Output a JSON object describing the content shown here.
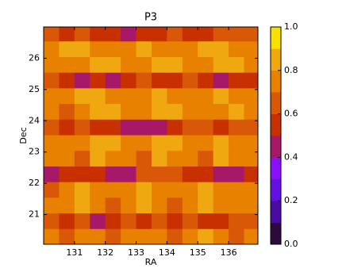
{
  "chart_data": {
    "type": "heatmap",
    "title": "P3",
    "x_label": "RA",
    "y_label": "Dec",
    "x": [
      130.25,
      130.75,
      131.25,
      131.75,
      132.25,
      132.75,
      133.25,
      133.75,
      134.25,
      134.75,
      135.25,
      135.75,
      136.25,
      136.75
    ],
    "y": [
      20.3,
      20.8,
      21.3,
      21.8,
      22.3,
      22.8,
      23.3,
      23.8,
      24.3,
      24.8,
      25.3,
      25.8,
      26.3,
      26.8
    ],
    "z": [
      [
        0.72,
        0.68,
        0.75,
        0.7,
        0.66,
        0.72,
        0.78,
        0.7,
        0.65,
        0.74,
        0.82,
        0.7,
        0.68,
        0.75
      ],
      [
        0.62,
        0.55,
        0.6,
        0.48,
        0.58,
        0.62,
        0.5,
        0.6,
        0.55,
        0.62,
        0.58,
        0.5,
        0.6,
        0.65
      ],
      [
        0.7,
        0.78,
        0.82,
        0.7,
        0.68,
        0.75,
        0.8,
        0.72,
        0.68,
        0.78,
        0.82,
        0.7,
        0.75,
        0.72
      ],
      [
        0.68,
        0.72,
        0.85,
        0.78,
        0.7,
        0.72,
        0.84,
        0.78,
        0.7,
        0.75,
        0.85,
        0.78,
        0.7,
        0.74
      ],
      [
        0.45,
        0.5,
        0.55,
        0.5,
        0.48,
        0.45,
        0.6,
        0.62,
        0.6,
        0.55,
        0.5,
        0.45,
        0.48,
        0.55
      ],
      [
        0.75,
        0.72,
        0.68,
        0.8,
        0.74,
        0.7,
        0.66,
        0.82,
        0.76,
        0.7,
        0.68,
        0.8,
        0.75,
        0.7
      ],
      [
        0.7,
        0.78,
        0.72,
        0.84,
        0.8,
        0.7,
        0.74,
        0.86,
        0.8,
        0.72,
        0.7,
        0.84,
        0.78,
        0.7
      ],
      [
        0.62,
        0.58,
        0.6,
        0.55,
        0.5,
        0.42,
        0.48,
        0.45,
        0.58,
        0.62,
        0.6,
        0.55,
        0.6,
        0.62
      ],
      [
        0.72,
        0.68,
        0.75,
        0.8,
        0.85,
        0.7,
        0.72,
        0.8,
        0.86,
        0.74,
        0.7,
        0.78,
        0.82,
        0.72
      ],
      [
        0.7,
        0.74,
        0.8,
        0.84,
        0.76,
        0.7,
        0.78,
        0.84,
        0.78,
        0.7,
        0.74,
        0.84,
        0.76,
        0.7
      ],
      [
        0.6,
        0.5,
        0.45,
        0.5,
        0.48,
        0.55,
        0.6,
        0.58,
        0.55,
        0.6,
        0.52,
        0.48,
        0.5,
        0.55
      ],
      [
        0.72,
        0.76,
        0.7,
        0.8,
        0.85,
        0.74,
        0.7,
        0.8,
        0.86,
        0.76,
        0.7,
        0.82,
        0.8,
        0.72
      ],
      [
        0.7,
        0.8,
        0.84,
        0.74,
        0.7,
        0.78,
        0.85,
        0.76,
        0.7,
        0.72,
        0.84,
        0.8,
        0.7,
        0.74
      ],
      [
        0.6,
        0.55,
        0.62,
        0.58,
        0.5,
        0.45,
        0.5,
        0.55,
        0.6,
        0.5,
        0.58,
        0.6,
        0.62,
        0.65
      ]
    ],
    "xlim": [
      130.0,
      136.95
    ],
    "ylim": [
      20.05,
      27.0
    ],
    "xticks": [
      131,
      132,
      133,
      134,
      135,
      136
    ],
    "yticks": [
      21,
      22,
      23,
      24,
      25,
      26
    ],
    "colorbar": {
      "levels": [
        0,
        0.1,
        0.2,
        0.3,
        0.4,
        0.5,
        0.6,
        0.7,
        0.8,
        0.9,
        1.0
      ],
      "colors": [
        "#2c0a3c",
        "#4a0ca0",
        "#6410e0",
        "#8a10f8",
        "#a81868",
        "#c83000",
        "#d85808",
        "#e88000",
        "#f0a810",
        "#f8e000"
      ],
      "ticks": [
        {
          "value": 0,
          "label": "0.0"
        },
        {
          "value": 0.2,
          "label": "0.2"
        },
        {
          "value": 0.4,
          "label": "0.4"
        },
        {
          "value": 0.6,
          "label": "0.6"
        },
        {
          "value": 0.8,
          "label": "0.8"
        },
        {
          "value": 1.0,
          "label": "1.0"
        }
      ]
    }
  }
}
